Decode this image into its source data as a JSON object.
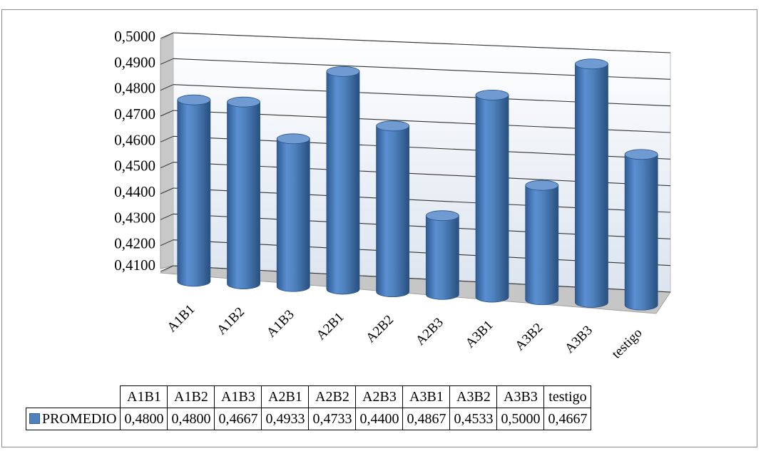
{
  "chart_data": {
    "type": "bar",
    "style": "3d-cylinder",
    "categories": [
      "A1B1",
      "A1B2",
      "A1B3",
      "A2B1",
      "A2B2",
      "A2B3",
      "A3B1",
      "A3B2",
      "A3B3",
      "testigo"
    ],
    "series": [
      {
        "name": "PROMEDIO",
        "values": [
          0.48,
          0.48,
          0.4667,
          0.4933,
          0.4733,
          0.44,
          0.4867,
          0.4533,
          0.5,
          0.4667
        ]
      }
    ],
    "series_color": "#4f81bd",
    "y_ticks": [
      "0,4100",
      "0,4200",
      "0,4300",
      "0,4400",
      "0,4500",
      "0,4600",
      "0,4700",
      "0,4800",
      "0,4900",
      "0,5000"
    ],
    "ylim": [
      0.41,
      0.5
    ],
    "grid": true,
    "legend": "data-table-below"
  },
  "table": {
    "headers": [
      "A1B1",
      "A1B2",
      "A1B3",
      "A2B1",
      "A2B2",
      "A2B3",
      "A3B1",
      "A3B2",
      "A3B3",
      "testigo"
    ],
    "row_label": "PROMEDIO",
    "cells": [
      "0,4800",
      "0,4800",
      "0,4667",
      "0,4933",
      "0,4733",
      "0,4400",
      "0,4867",
      "0,4533",
      "0,5000",
      "0,4667"
    ]
  }
}
